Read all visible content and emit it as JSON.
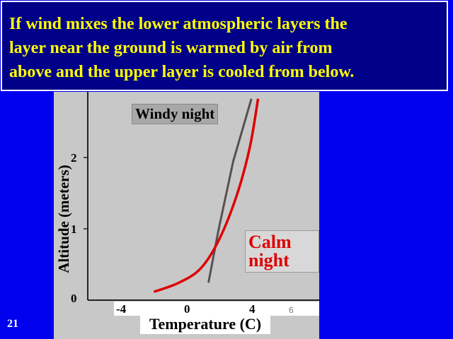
{
  "slide": {
    "title": "If wind mixes the lower atmospheric layers the\nlayer near the ground is warmed by air from\nabove and the upper layer is cooled from below.",
    "number": "21"
  },
  "chart_data": {
    "type": "line",
    "xlabel": "Temperature (C)",
    "ylabel": "Altitude (meters)",
    "x_ticks": [
      "-4",
      "0",
      "4"
    ],
    "x_tick_faint": "6",
    "y_ticks": [
      "0",
      "1",
      "2"
    ],
    "series": [
      {
        "name": "Windy night",
        "color": "#5a5050",
        "points": [
          [
            1.3,
            0.25
          ],
          [
            1.9,
            1.0
          ],
          [
            2.8,
            2.0
          ],
          [
            3.9,
            2.9
          ]
        ]
      },
      {
        "name": "Calm night",
        "color": "#dd0000",
        "points": [
          [
            -2.0,
            0.12
          ],
          [
            -0.5,
            0.25
          ],
          [
            0.8,
            0.45
          ],
          [
            1.9,
            0.85
          ],
          [
            3.0,
            1.5
          ],
          [
            3.8,
            2.2
          ],
          [
            4.3,
            2.9
          ]
        ]
      }
    ],
    "xlim": [
      -6,
      8
    ],
    "ylim": [
      0,
      3
    ]
  },
  "colors": {
    "background": "#0000ee",
    "title_bg": "#000088",
    "title_text": "#ffff00",
    "panel": "#c8c8c8"
  }
}
